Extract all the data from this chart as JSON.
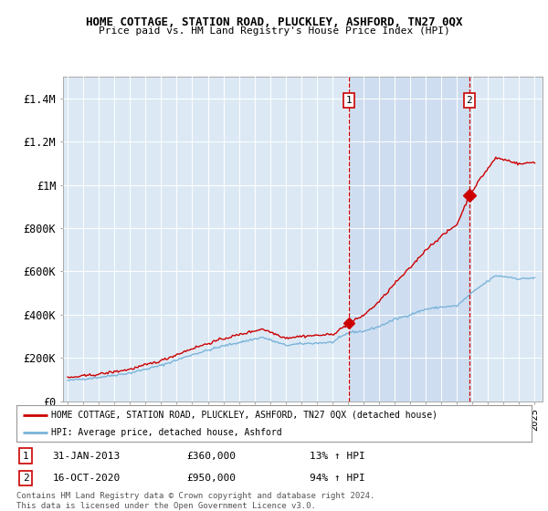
{
  "title": "HOME COTTAGE, STATION ROAD, PLUCKLEY, ASHFORD, TN27 0QX",
  "subtitle": "Price paid vs. HM Land Registry's House Price Index (HPI)",
  "plot_bg_color": "#dce9f5",
  "hpi_color": "#7ab3d9",
  "property_color": "#cc0000",
  "shade_color": "#c5d8ee",
  "ylim": [
    0,
    1500000
  ],
  "yticks": [
    0,
    200000,
    400000,
    600000,
    800000,
    1000000,
    1200000,
    1400000
  ],
  "ytick_labels": [
    "£0",
    "£200K",
    "£400K",
    "£600K",
    "£800K",
    "£1M",
    "£1.2M",
    "£1.4M"
  ],
  "xstart_year": 1995,
  "xend_year": 2025,
  "sale1_date": 2013.08,
  "sale1_price": 360000,
  "sale2_date": 2020.79,
  "sale2_price": 950000,
  "legend_property": "HOME COTTAGE, STATION ROAD, PLUCKLEY, ASHFORD, TN27 0QX (detached house)",
  "legend_hpi": "HPI: Average price, detached house, Ashford",
  "footer": "Contains HM Land Registry data © Crown copyright and database right 2024.\nThis data is licensed under the Open Government Licence v3.0.",
  "grid_color": "#ffffff",
  "vline_color": "#cc0000"
}
